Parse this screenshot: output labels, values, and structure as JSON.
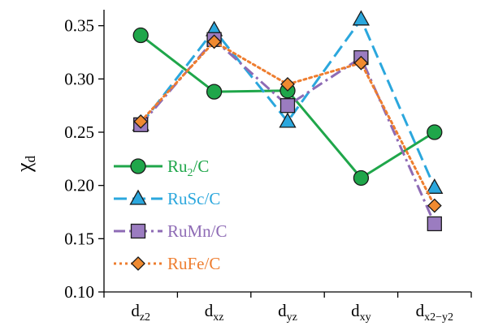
{
  "chart_data": {
    "type": "line",
    "title": "",
    "xlabel": "",
    "ylabel": {
      "base": "χ",
      "sub": "d"
    },
    "ylim": [
      0.1,
      0.35
    ],
    "y_ticks": [
      "0.10",
      "0.15",
      "0.20",
      "0.25",
      "0.30",
      "0.35"
    ],
    "categories": [
      {
        "base": "d",
        "sub": "z2"
      },
      {
        "base": "d",
        "sub": "xz"
      },
      {
        "base": "d",
        "sub": "yz"
      },
      {
        "base": "d",
        "sub": "xy"
      },
      {
        "base": "d",
        "sub": "x2−y2"
      }
    ],
    "legend_position": "left",
    "grid": false,
    "series": [
      {
        "name": {
          "base": "Ru",
          "sub": "2",
          "rest": "/C"
        },
        "values": [
          0.341,
          0.288,
          0.289,
          0.207,
          0.25
        ],
        "color": "#1fa64a",
        "dash": "solid",
        "marker": "circle",
        "marker_fill": "#1fa64a"
      },
      {
        "name": {
          "base": "RuSc/C",
          "sub": "",
          "rest": ""
        },
        "values": [
          0.257,
          0.346,
          0.26,
          0.356,
          0.198
        ],
        "color": "#2ba7dd",
        "dash": "long-dash",
        "marker": "triangle",
        "marker_fill": "#2ba7dd"
      },
      {
        "name": {
          "base": "RuMn/C",
          "sub": "",
          "rest": ""
        },
        "values": [
          0.257,
          0.337,
          0.275,
          0.32,
          0.164
        ],
        "color": "#8e6bb5",
        "dash": "dash-dot",
        "marker": "square",
        "marker_fill": "#9b7cc0"
      },
      {
        "name": {
          "base": "RuFe/C",
          "sub": "",
          "rest": ""
        },
        "values": [
          0.26,
          0.335,
          0.295,
          0.315,
          0.181
        ],
        "color": "#ee7d2f",
        "dash": "dotted",
        "marker": "diamond",
        "marker_fill": "#f08a30"
      }
    ]
  }
}
